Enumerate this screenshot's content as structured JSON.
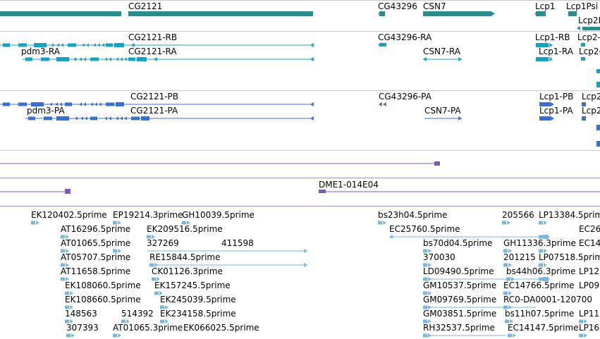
{
  "colors": {
    "gene": "#2e8b8b",
    "transcript_ra": "#16a2c2",
    "transcript_pa": "#3a6fd0",
    "clone": "#7a5cb0",
    "est": "#78b7df",
    "track_line": "#c0c0c0"
  },
  "tracks": {
    "genes": {
      "labels": [
        "CG2121",
        "CG43296",
        "CSN7",
        "Lcp1",
        "Lcp1Psi",
        "Lcp2L"
      ]
    },
    "transcripts_ra": {
      "labels": [
        "CG2121-RB",
        "pdm3-RA",
        "CG2121-RA",
        "CG43296-RA",
        "CSN7-RA",
        "Lcp1-RB",
        "Lcp1-RA",
        "Lcp2-",
        "Lcp2-"
      ]
    },
    "transcripts_pa": {
      "labels": [
        "CG2121-PB",
        "pdm3-PA",
        "CG2121-PA",
        "CG43296-PA",
        "CSN7-PA",
        "Lcp1-PB",
        "Lcp1-PA",
        "Lcp2",
        "Lcp2"
      ]
    },
    "clones": {
      "labels": [
        "DME1-014E04"
      ]
    },
    "ests": {
      "labels": [
        "EK120402.5prime",
        "EP19214.3prime",
        "GH10039.5prime",
        "bs23h04.5prime",
        "205566",
        "LP13384.5prime",
        "AT16296.5prime",
        "EK209516.5prime",
        "EC25760.5prime",
        "EC26",
        "AT01065.5prime",
        "327269",
        "411598",
        "bs70d04.5prime",
        "GH11336.3prime",
        "EC14",
        "AT05707.5prime",
        "RE15844.5prime",
        "370030",
        "201215",
        "LP07518.5prime",
        "AT11658.5prime",
        "CK01126.3prime",
        "LD09490.5prime",
        "bs44h06.3prime",
        "LP12",
        "EK108060.5prime",
        "EK157245.5prime",
        "GM10537.5prime",
        "EC14766.5prime",
        "LP09",
        "EK108660.5prime",
        "EK245039.5prime",
        "GM09769.5prime",
        "RC0-DA0001-120700",
        "148563",
        "514392",
        "EK234158.5prime",
        "GM03851.5prime",
        "bs11h07.5prime",
        "LP11",
        "307393",
        "AT01065.3prime",
        "EK066025.5prime",
        "RH32537.5prime",
        "EC14147.5prime",
        "LP16"
      ]
    }
  }
}
